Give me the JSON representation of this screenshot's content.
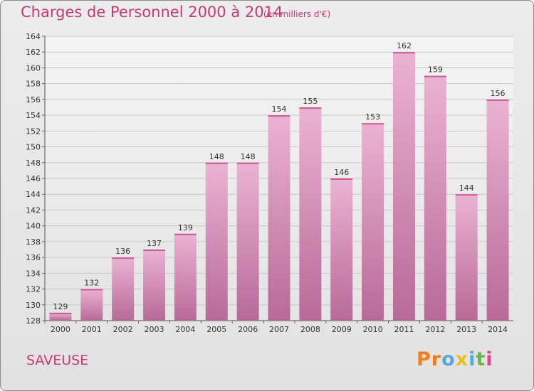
{
  "header": {
    "title": "Charges de Personnel 2000 à 2014",
    "subtitle": "(en milliers d'€)"
  },
  "footer": {
    "commune": "SAVEUSE",
    "logo": [
      "P",
      "r",
      "o",
      "x",
      "i",
      "t",
      "i"
    ]
  },
  "colors": {
    "accent": "#c73b6f",
    "bar_light": "#ebb3d3",
    "bar_dark": "#b86a97",
    "logo": [
      "#f07d1e",
      "#f07d1e",
      "#5aa7dc",
      "#e8c21a",
      "#5aa7dc",
      "#66b845",
      "#e2478b"
    ]
  },
  "chart_data": {
    "type": "bar",
    "categories": [
      "2000",
      "2001",
      "2002",
      "2003",
      "2004",
      "2005",
      "2006",
      "2007",
      "2008",
      "2009",
      "2010",
      "2011",
      "2012",
      "2013",
      "2014"
    ],
    "values": [
      129,
      132,
      136,
      137,
      139,
      148,
      148,
      154,
      155,
      146,
      153,
      162,
      159,
      144,
      156
    ],
    "ylim": [
      128,
      164
    ],
    "yticks": [
      128,
      130,
      132,
      134,
      136,
      138,
      140,
      142,
      144,
      146,
      148,
      150,
      152,
      154,
      156,
      158,
      160,
      162,
      164
    ],
    "grid": true
  }
}
